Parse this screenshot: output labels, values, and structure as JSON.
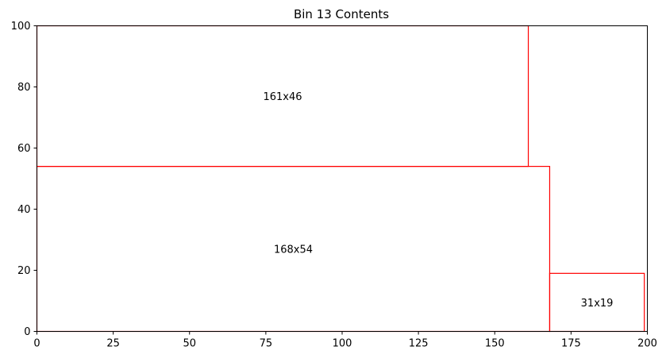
{
  "chart_data": {
    "type": "rectangles",
    "title": "Bin 13 Contents",
    "xlabel": "",
    "ylabel": "",
    "xlim": [
      0,
      200
    ],
    "ylim": [
      0,
      100
    ],
    "x_ticks": [
      0,
      25,
      50,
      75,
      100,
      125,
      150,
      175,
      200
    ],
    "y_ticks": [
      0,
      20,
      40,
      60,
      80,
      100
    ],
    "grid": false,
    "edge_color": "#ff0000",
    "rectangles": [
      {
        "label": "168x54",
        "x": 0,
        "y": 0,
        "width": 168,
        "height": 54
      },
      {
        "label": "161x46",
        "x": 0,
        "y": 54,
        "width": 161,
        "height": 46
      },
      {
        "label": "31x19",
        "x": 168,
        "y": 0,
        "width": 31,
        "height": 19
      }
    ]
  }
}
